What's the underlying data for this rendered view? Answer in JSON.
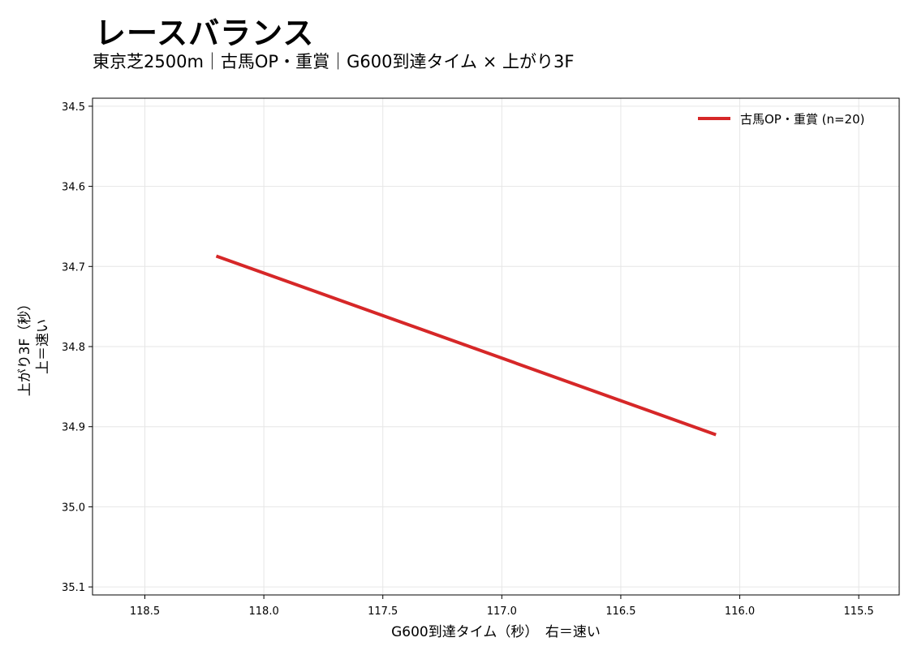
{
  "chart_data": {
    "type": "line",
    "title": "レースバランス",
    "subtitle": "東京芝2500m｜古馬OP・重賞｜G600到達タイム × 上がり3F",
    "xlabel": "G600到達タイム（秒）　右＝速い",
    "ylabel_line1": "上がり3F（秒）",
    "ylabel_line2": "上＝速い",
    "x_inverted": true,
    "y_inverted": true,
    "xlim": [
      118.72,
      115.33
    ],
    "ylim": [
      35.11,
      34.49
    ],
    "x_ticks": [
      118.5,
      118.0,
      117.5,
      117.0,
      116.5,
      116.0,
      115.5
    ],
    "x_tick_labels": [
      "118.5",
      "118.0",
      "117.5",
      "117.0",
      "116.5",
      "116.0",
      "115.5"
    ],
    "y_ticks": [
      34.5,
      34.6,
      34.7,
      34.8,
      34.9,
      35.0,
      35.1
    ],
    "y_tick_labels": [
      "34.5",
      "34.6",
      "34.7",
      "34.8",
      "34.9",
      "35.0",
      "35.1"
    ],
    "grid": true,
    "legend_position": "top-right",
    "series": [
      {
        "name": "古馬OP・重賞 (n=20)",
        "color": "#d62728",
        "points": [
          {
            "x": 118.2,
            "y": 34.687
          },
          {
            "x": 116.1,
            "y": 34.91
          }
        ]
      }
    ]
  }
}
